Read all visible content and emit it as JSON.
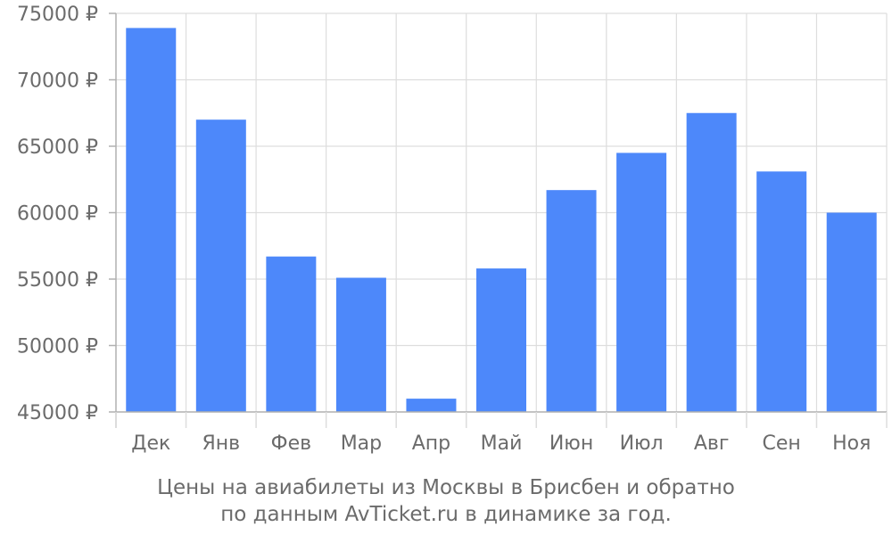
{
  "chart_data": {
    "type": "bar",
    "categories": [
      "Дек",
      "Янв",
      "Фев",
      "Мар",
      "Апр",
      "Май",
      "Июн",
      "Июл",
      "Авг",
      "Сен",
      "Ноя"
    ],
    "values": [
      73900,
      67000,
      56700,
      55100,
      46000,
      55800,
      61700,
      64500,
      67500,
      63100,
      60000
    ],
    "ylim": [
      45000,
      75000
    ],
    "yticks": [
      45000,
      50000,
      55000,
      60000,
      65000,
      70000,
      75000
    ],
    "ytick_labels": [
      "45000 ₽",
      "50000 ₽",
      "55000 ₽",
      "60000 ₽",
      "65000 ₽",
      "70000 ₽",
      "75000 ₽"
    ],
    "grid": true,
    "title": "",
    "xlabel": "",
    "ylabel": "",
    "caption": {
      "line1": "Цены на авиабилеты из Москвы в Брисбен и обратно",
      "line2": "по данным AvTicket.ru в динамике за год."
    },
    "colors": {
      "bar": "#4d88fa",
      "grid": "#dddddd",
      "axis": "#b0b0b0",
      "text": "#6b6b6b"
    }
  }
}
